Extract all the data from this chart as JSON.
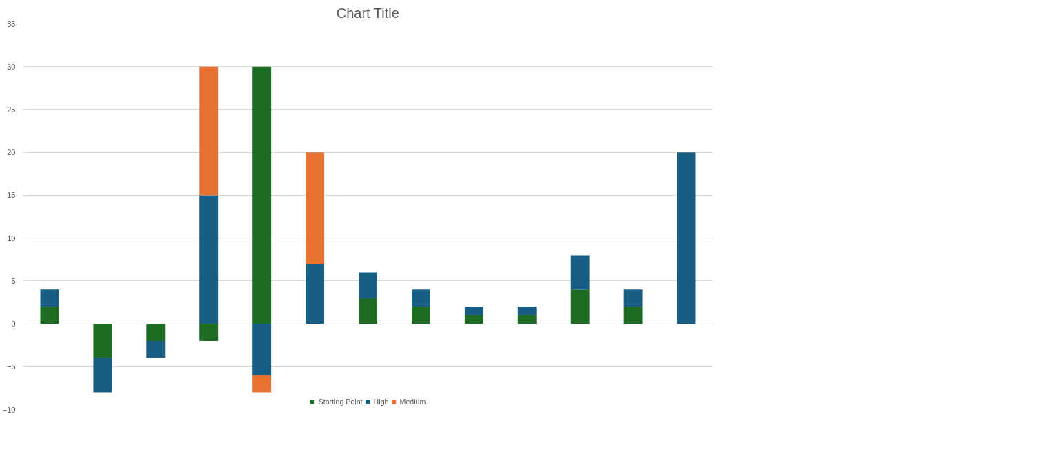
{
  "chart_data": {
    "type": "bar",
    "title": "Chart Title",
    "stacked": true,
    "categories": [
      null,
      null,
      null,
      null,
      null,
      null,
      null,
      null,
      null,
      null,
      null,
      null,
      null
    ],
    "series": [
      {
        "name": "Starting Point",
        "color": "#1e6b24",
        "values": [
          2,
          -4,
          -2,
          -2,
          30,
          0,
          3,
          2,
          1,
          1,
          4,
          2,
          0
        ]
      },
      {
        "name": "High",
        "color": "#175e85",
        "values": [
          2,
          -4,
          -2,
          15,
          -6,
          7,
          3,
          2,
          1,
          1,
          4,
          2,
          20
        ]
      },
      {
        "name": "Medium",
        "color": "#e97132",
        "values": [
          0,
          0,
          0,
          15,
          -2,
          13,
          0,
          0,
          0,
          0,
          0,
          0,
          0
        ]
      }
    ],
    "ylim": [
      -10,
      35
    ],
    "yticks": [
      -10,
      -5,
      0,
      5,
      10,
      15,
      20,
      25,
      30,
      35
    ],
    "grid": "y",
    "legend": "bottom",
    "tick_labels": "y"
  }
}
